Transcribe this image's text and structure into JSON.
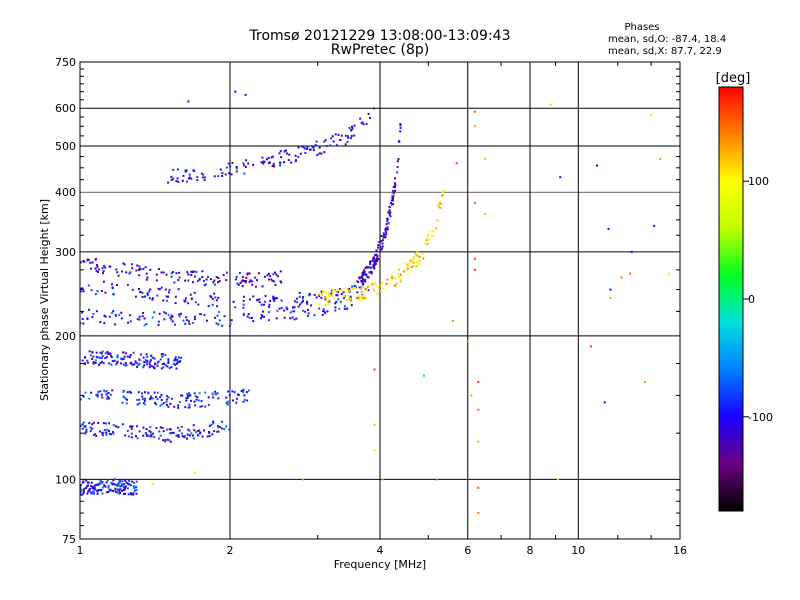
{
  "chart_data": {
    "type": "scatter",
    "title": "Tromsø 20121229 13:08:00-13:09:43",
    "subtitle": "RwPretec (8p)",
    "xlabel": "Frequency [MHz]",
    "ylabel": "Stationary phase Virtual Height [km]",
    "x_scale": "log",
    "y_scale": "log",
    "xlim": [
      1,
      16
    ],
    "ylim": [
      75,
      750
    ],
    "x_ticks": [
      1,
      2,
      4,
      6,
      8,
      10,
      16
    ],
    "y_ticks": [
      75,
      100,
      200,
      300,
      400,
      500,
      600,
      750
    ],
    "grid": true,
    "phase_info": {
      "heading": "Phases",
      "line1": "mean, sd,O: -87.4, 18.4",
      "line2": "mean, sd,X:  87.7, 22.9"
    },
    "colorbar": {
      "label": "[deg]",
      "range": [
        -180,
        180
      ],
      "ticks": [
        "100",
        "0",
        "-100"
      ],
      "tick_values": [
        100,
        0,
        -100
      ],
      "colors": [
        "#000000",
        "#6a0080",
        "#1a00ff",
        "#0080ff",
        "#00e0e0",
        "#00ff20",
        "#c0ff00",
        "#ffff00",
        "#ff8000",
        "#ff0000"
      ]
    },
    "traces": [
      {
        "name": "",
        "x_range": [
          1.0,
          3.6
        ],
        "values": [
          [
            1.0,
            255
          ],
          [
            1.3,
            248
          ],
          [
            1.7,
            240
          ],
          [
            2.2,
            235
          ],
          [
            2.8,
            238
          ],
          [
            3.3,
            245
          ],
          [
            3.6,
            250
          ]
        ]
      },
      {
        "name": "",
        "x_range": [
          1.0,
          3.8
        ],
        "values": [
          [
            1.0,
            220
          ],
          [
            1.3,
            218
          ],
          [
            1.7,
            216
          ],
          [
            2.2,
            218
          ],
          [
            2.8,
            225
          ],
          [
            3.3,
            232
          ],
          [
            3.8,
            245
          ]
        ]
      },
      {
        "name": "",
        "x_range": [
          1.0,
          2.6
        ],
        "values": [
          [
            1.0,
            285
          ],
          [
            1.3,
            272
          ],
          [
            1.7,
            265
          ],
          [
            2.2,
            262
          ],
          [
            2.6,
            265
          ]
        ]
      },
      {
        "name": "",
        "x_range": [
          3.6,
          4.4
        ],
        "values": [
          [
            3.6,
            255
          ],
          [
            3.9,
            285
          ],
          [
            4.1,
            330
          ],
          [
            4.25,
            390
          ],
          [
            4.35,
            460
          ],
          [
            4.4,
            560
          ]
        ]
      },
      {
        "name": "",
        "x_range": [
          1.5,
          3.9
        ],
        "values": [
          [
            1.5,
            430
          ],
          [
            1.9,
            440
          ],
          [
            2.2,
            455
          ],
          [
            2.6,
            475
          ],
          [
            3.0,
            495
          ],
          [
            3.4,
            520
          ],
          [
            3.7,
            560
          ],
          [
            3.9,
            600
          ]
        ]
      },
      {
        "name": "",
        "x_range": [
          3.0,
          5.4
        ],
        "values": [
          [
            3.0,
            240
          ],
          [
            3.5,
            243
          ],
          [
            4.0,
            252
          ],
          [
            4.5,
            272
          ],
          [
            4.9,
            300
          ],
          [
            5.2,
            350
          ],
          [
            5.4,
            420
          ]
        ]
      },
      {
        "name": "",
        "x_range": [
          1.0,
          2.2
        ],
        "values": [
          [
            1.0,
            150
          ],
          [
            1.3,
            148
          ],
          [
            1.6,
            146
          ],
          [
            1.9,
            148
          ],
          [
            2.2,
            150
          ]
        ]
      },
      {
        "name": "",
        "x_range": [
          1.0,
          2.0
        ],
        "values": [
          [
            1.0,
            128
          ],
          [
            1.3,
            126
          ],
          [
            1.5,
            124
          ],
          [
            1.8,
            127
          ],
          [
            2.0,
            130
          ]
        ]
      },
      {
        "name": "",
        "x_range": [
          1.0,
          1.6
        ],
        "values": [
          [
            1.0,
            180
          ],
          [
            1.3,
            178
          ],
          [
            1.6,
            176
          ]
        ]
      },
      {
        "name": "",
        "x_range": [
          1.0,
          1.3
        ],
        "values": [
          [
            1.0,
            96
          ],
          [
            1.15,
            97
          ],
          [
            1.3,
            96
          ]
        ]
      }
    ],
    "isolated_points": [
      [
        1.65,
        620,
        -110
      ],
      [
        2.05,
        650,
        -110
      ],
      [
        2.15,
        640,
        -110
      ],
      [
        5.7,
        460,
        160
      ],
      [
        6.2,
        590,
        160
      ],
      [
        6.2,
        550,
        130
      ],
      [
        6.2,
        380,
        150
      ],
      [
        6.2,
        290,
        160
      ],
      [
        6.2,
        275,
        160
      ],
      [
        6.5,
        470,
        120
      ],
      [
        6.5,
        360,
        120
      ],
      [
        8.8,
        610,
        120
      ],
      [
        9.2,
        430,
        -100
      ],
      [
        10.9,
        455,
        -100
      ],
      [
        11.5,
        335,
        -100
      ],
      [
        12.7,
        270,
        150
      ],
      [
        11.6,
        250,
        -110
      ],
      [
        11.6,
        240,
        130
      ],
      [
        14.0,
        580,
        110
      ],
      [
        14.6,
        470,
        140
      ],
      [
        15.2,
        270,
        110
      ],
      [
        12.2,
        265,
        140
      ],
      [
        10.6,
        190,
        160
      ],
      [
        11.3,
        145,
        -100
      ],
      [
        12.8,
        300,
        -110
      ],
      [
        14.2,
        340,
        -100
      ],
      [
        13.6,
        160,
        140
      ],
      [
        6.3,
        160,
        160
      ],
      [
        6.3,
        140,
        150
      ],
      [
        6.3,
        96,
        150
      ],
      [
        6.3,
        85,
        140
      ],
      [
        5.2,
        100,
        150
      ],
      [
        4.05,
        100,
        130
      ],
      [
        3.9,
        115,
        110
      ],
      [
        3.9,
        130,
        120
      ],
      [
        3.9,
        170,
        160
      ],
      [
        2.8,
        100,
        130
      ],
      [
        1.7,
        103,
        110
      ],
      [
        1.4,
        98,
        110
      ],
      [
        9.1,
        100,
        110
      ],
      [
        6.0,
        195,
        140
      ],
      [
        4.9,
        165,
        0
      ],
      [
        5.6,
        215,
        140
      ],
      [
        6.1,
        150,
        130
      ],
      [
        6.3,
        120,
        130
      ]
    ]
  }
}
